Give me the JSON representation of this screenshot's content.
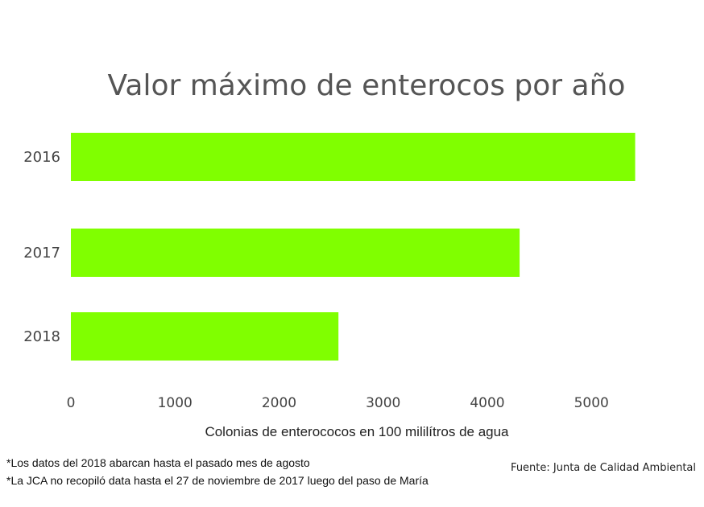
{
  "chart_data": {
    "type": "bar",
    "orientation": "horizontal",
    "title": "Valor máximo de enterocos por año",
    "categories": [
      "2016",
      "2017",
      "2018"
    ],
    "values": [
      5420,
      4310,
      2570
    ],
    "xlabel": "Colonias de enterococos en 100 mililítros de agua",
    "ylabel": "",
    "xlim": [
      0,
      5500
    ],
    "xticks": [
      "0",
      "1000",
      "2000",
      "3000",
      "4000",
      "5000"
    ],
    "bar_color": "#80ff00",
    "grid": false
  },
  "notes": [
    "*Los datos del 2018 abarcan hasta el pasado mes de agosto",
    "*La JCA no recopiló data hasta el 27 de noviembre de 2017 luego del paso de María"
  ],
  "source": "Fuente: Junta de Calidad Ambiental"
}
